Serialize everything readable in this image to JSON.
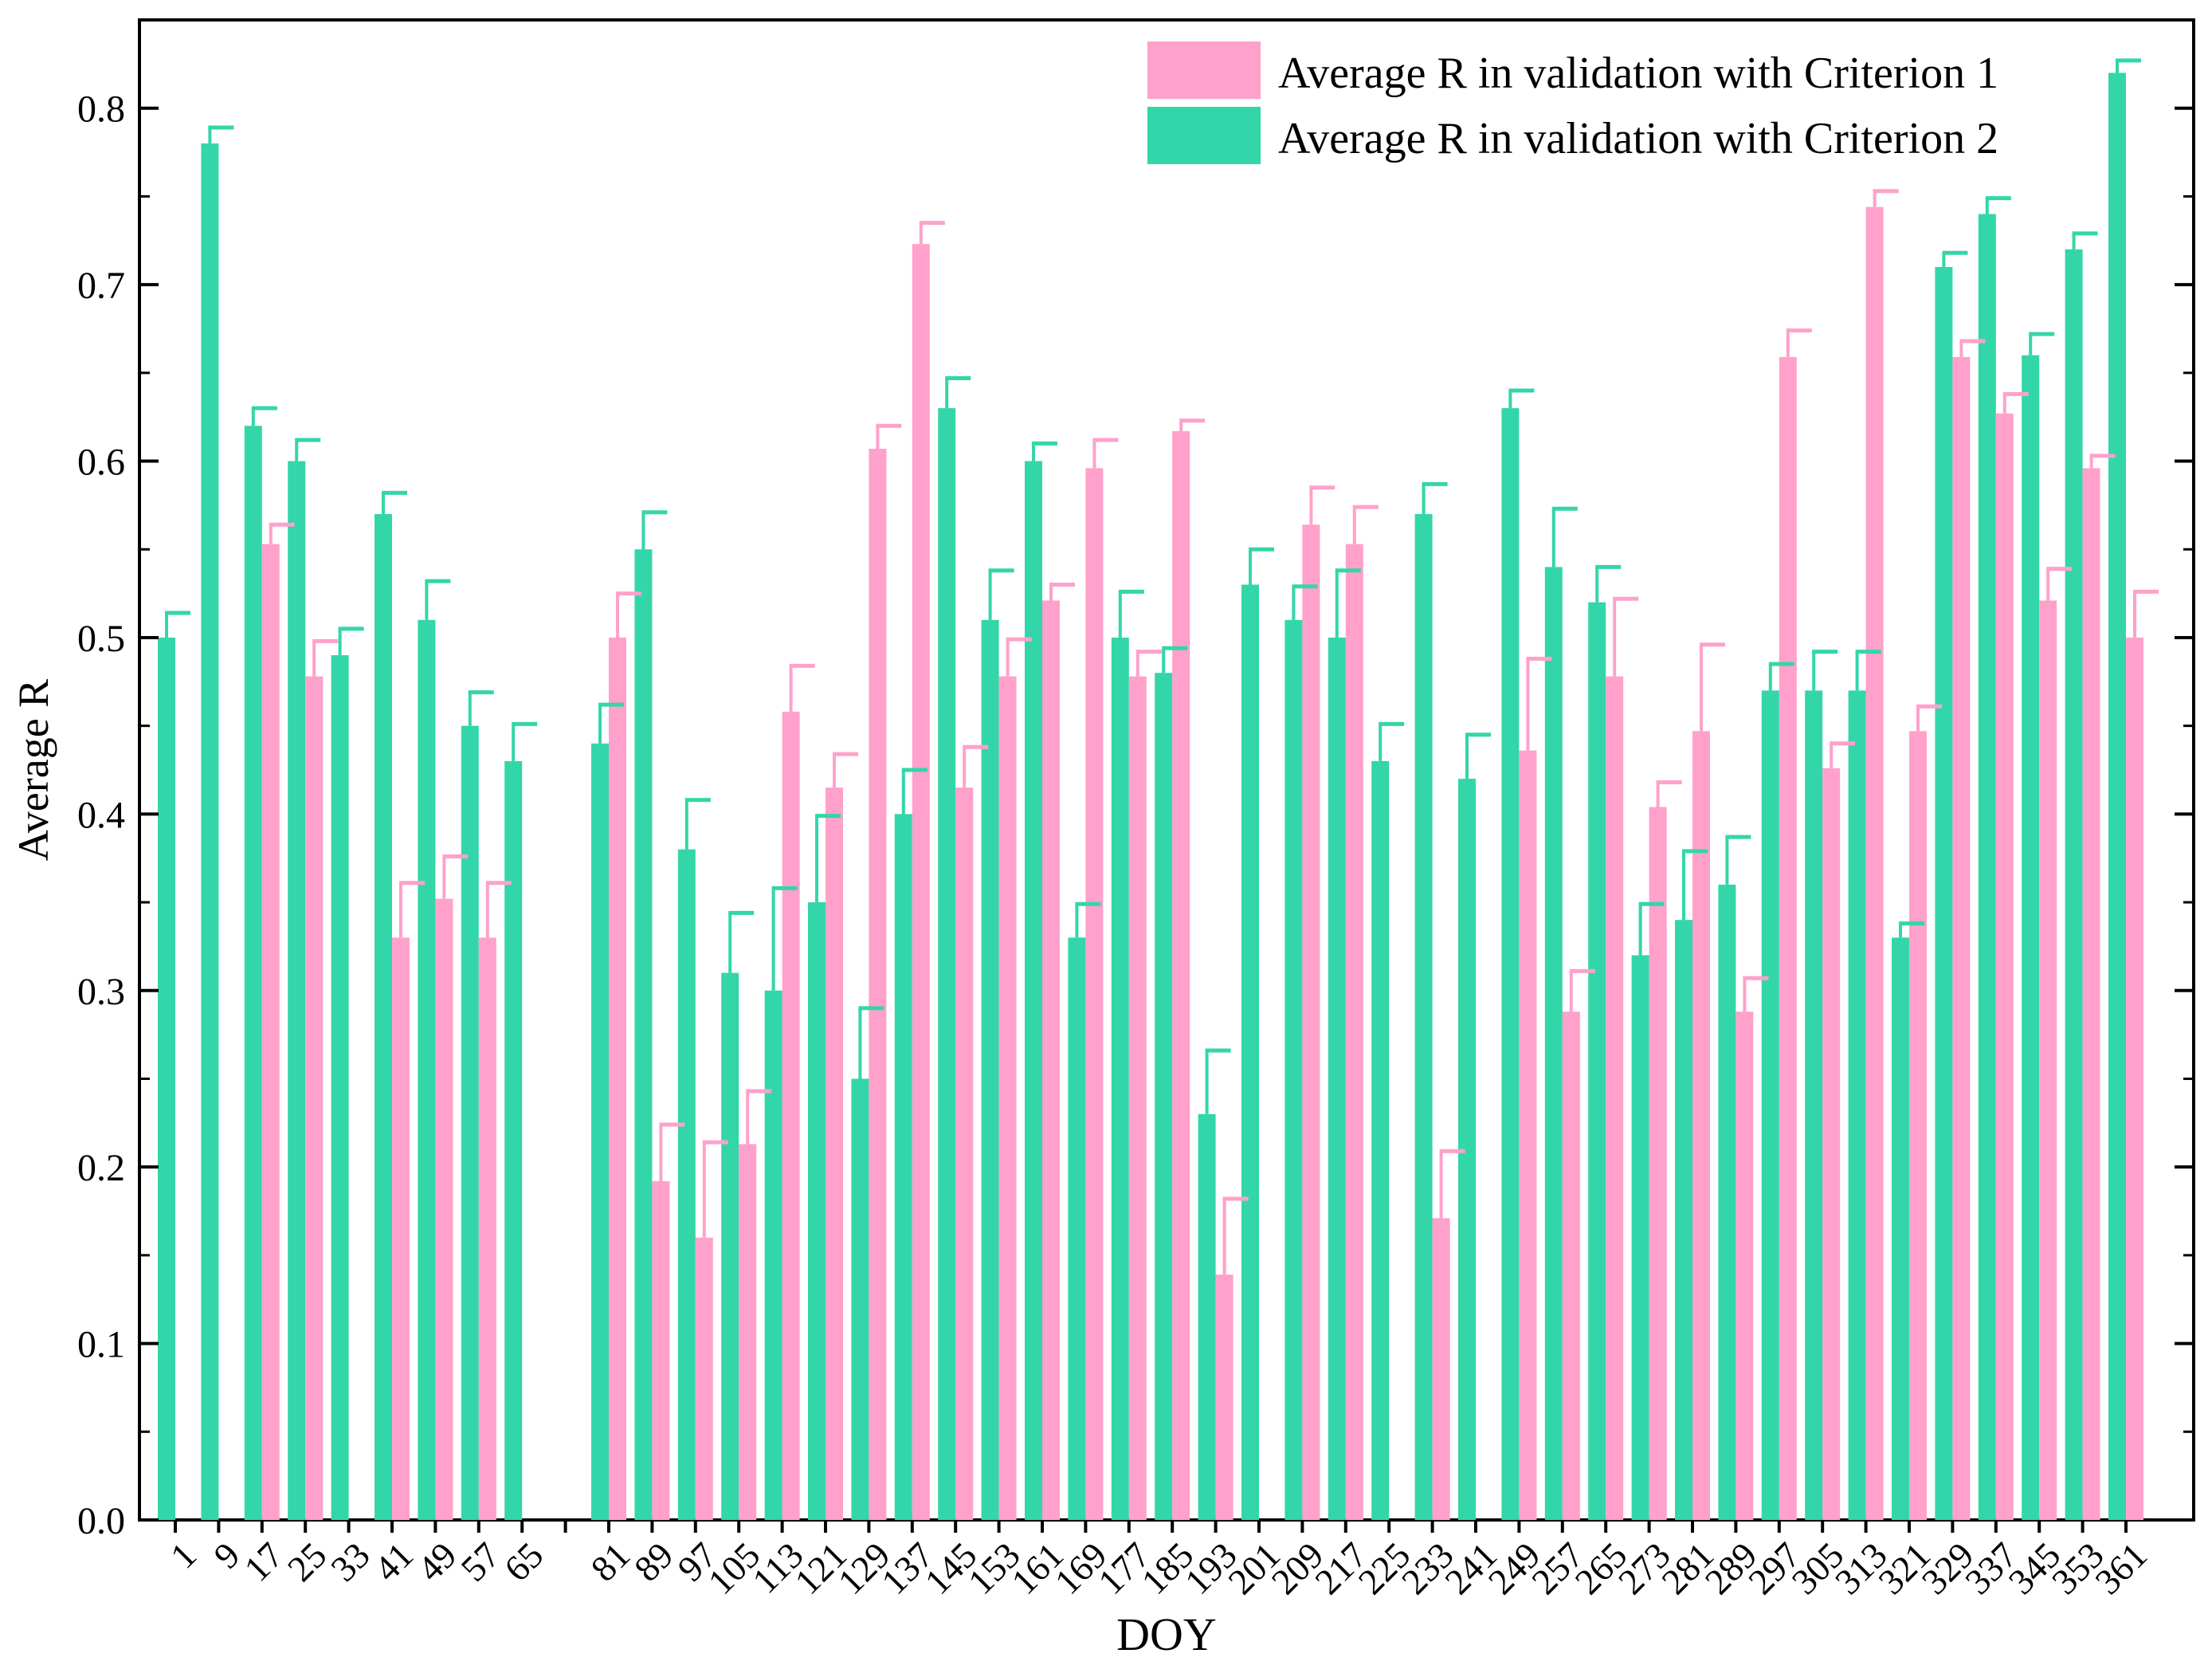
{
  "chart_data": {
    "type": "bar",
    "title": "",
    "xlabel": "DOY",
    "ylabel": "Average R",
    "ylim": [
      0,
      0.85
    ],
    "yticks": [
      "0.0",
      "0.1",
      "0.2",
      "0.3",
      "0.4",
      "0.5",
      "0.6",
      "0.7",
      "0.8"
    ],
    "grid": false,
    "legend_position": "top-right",
    "categories": [
      "1",
      "9",
      "17",
      "25",
      "33",
      "41",
      "49",
      "57",
      "65",
      "",
      "81",
      "89",
      "97",
      "105",
      "113",
      "121",
      "129",
      "137",
      "145",
      "153",
      "161",
      "169",
      "177",
      "185",
      "193",
      "201",
      "209",
      "217",
      "225",
      "233",
      "241",
      "249",
      "257",
      "265",
      "273",
      "281",
      "289",
      "297",
      "305",
      "313",
      "321",
      "329",
      "337",
      "345",
      "353",
      "361"
    ],
    "series": [
      {
        "name": "Average R in validation with Criterion 2",
        "color": "#33d6a9",
        "values": [
          0.5,
          0.78,
          0.62,
          0.6,
          0.49,
          0.57,
          0.51,
          0.45,
          0.43,
          null,
          0.44,
          0.55,
          0.38,
          0.31,
          0.3,
          0.35,
          0.25,
          0.4,
          0.63,
          0.51,
          0.6,
          0.33,
          0.5,
          0.48,
          0.23,
          0.53,
          0.51,
          0.5,
          0.43,
          0.57,
          0.42,
          0.63,
          0.54,
          0.52,
          0.32,
          0.34,
          0.36,
          0.47,
          0.47,
          0.47,
          0.33,
          0.71,
          0.74,
          0.66,
          0.72,
          0.82
        ],
        "errors": [
          0.014,
          0.009,
          0.01,
          0.012,
          0.015,
          0.012,
          0.022,
          0.019,
          0.021,
          null,
          0.022,
          0.021,
          0.028,
          0.034,
          0.058,
          0.049,
          0.04,
          0.025,
          0.017,
          0.028,
          0.01,
          0.019,
          0.026,
          0.014,
          0.036,
          0.02,
          0.019,
          0.038,
          0.021,
          0.017,
          0.025,
          0.01,
          0.033,
          0.02,
          0.029,
          0.039,
          0.027,
          0.015,
          0.022,
          0.022,
          0.008,
          0.008,
          0.009,
          0.012,
          0.009,
          0.007
        ]
      },
      {
        "name": "Average R in validation with Criterion 1",
        "color": "#ffa1cb",
        "values": [
          null,
          null,
          0.553,
          0.478,
          null,
          0.33,
          0.352,
          0.33,
          null,
          null,
          0.5,
          0.192,
          0.16,
          0.213,
          0.458,
          0.415,
          0.607,
          0.723,
          0.415,
          0.478,
          0.521,
          0.596,
          0.478,
          0.617,
          0.139,
          null,
          0.564,
          0.553,
          null,
          0.171,
          null,
          0.436,
          0.288,
          0.478,
          0.404,
          0.447,
          0.288,
          0.659,
          0.426,
          0.744,
          0.447,
          0.659,
          0.627,
          0.521,
          0.596,
          0.5
        ],
        "errors": [
          null,
          null,
          0.011,
          0.02,
          null,
          0.031,
          0.024,
          0.031,
          null,
          null,
          0.025,
          0.032,
          0.054,
          0.03,
          0.026,
          0.019,
          0.013,
          0.012,
          0.023,
          0.021,
          0.009,
          0.016,
          0.014,
          0.006,
          0.043,
          null,
          0.021,
          0.021,
          null,
          0.038,
          null,
          0.052,
          0.023,
          0.044,
          0.014,
          0.049,
          0.019,
          0.015,
          0.014,
          0.009,
          0.014,
          0.009,
          0.011,
          0.018,
          0.007,
          0.026
        ]
      }
    ]
  }
}
